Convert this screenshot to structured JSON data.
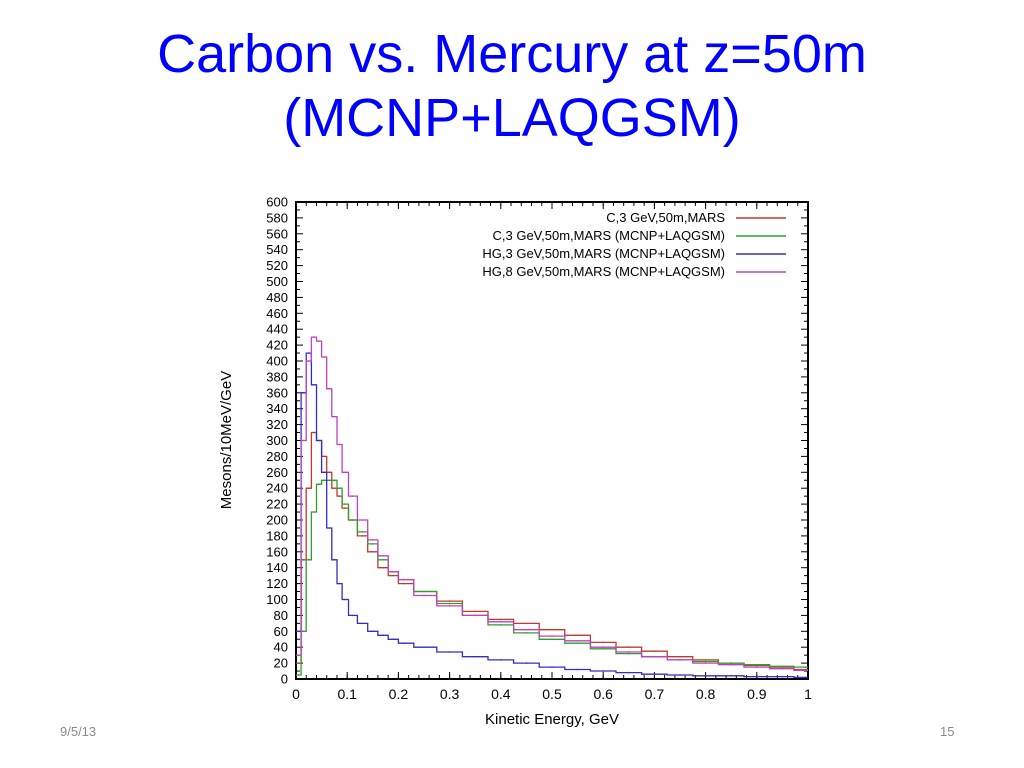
{
  "slide": {
    "title_line1": "Carbon vs. Mercury at z=50m",
    "title_line2": "(MCNP+LAQGSM)",
    "date": "9/5/13",
    "page_number": "15"
  },
  "chart_data": {
    "type": "line",
    "title": "",
    "xlabel": "Kinetic Energy, GeV",
    "ylabel": "Mesons/10MeV/GeV",
    "xlim": [
      0,
      1
    ],
    "ylim": [
      0,
      600
    ],
    "xticks": [
      "0",
      "0.1",
      "0.2",
      "0.3",
      "0.4",
      "0.5",
      "0.6",
      "0.7",
      "0.8",
      "0.9",
      "1"
    ],
    "yticks": [
      "0",
      "20",
      "40",
      "60",
      "80",
      "100",
      "120",
      "140",
      "160",
      "180",
      "200",
      "220",
      "240",
      "260",
      "280",
      "300",
      "320",
      "340",
      "360",
      "380",
      "400",
      "420",
      "440",
      "460",
      "480",
      "500",
      "520",
      "540",
      "560",
      "580",
      "600"
    ],
    "grid": false,
    "legend_position": "top-right",
    "x": [
      0.005,
      0.015,
      0.025,
      0.035,
      0.045,
      0.055,
      0.065,
      0.075,
      0.085,
      0.095,
      0.11,
      0.13,
      0.15,
      0.17,
      0.19,
      0.21,
      0.25,
      0.3,
      0.35,
      0.4,
      0.45,
      0.5,
      0.55,
      0.6,
      0.65,
      0.7,
      0.75,
      0.8,
      0.85,
      0.9,
      0.95,
      0.995
    ],
    "series": [
      {
        "name": "C,3 GeV,50m,MARS",
        "color": "#c0392b",
        "values": [
          20,
          150,
          240,
          310,
          300,
          280,
          260,
          240,
          230,
          215,
          200,
          180,
          160,
          140,
          130,
          120,
          110,
          98,
          85,
          75,
          70,
          62,
          55,
          46,
          40,
          35,
          28,
          24,
          20,
          17,
          14,
          12
        ]
      },
      {
        "name": "C,3 GeV,50m,MARS (MCNP+LAQGSM)",
        "color": "#2ca02c",
        "values": [
          5,
          60,
          150,
          210,
          245,
          250,
          250,
          250,
          240,
          220,
          200,
          185,
          170,
          150,
          135,
          125,
          110,
          95,
          80,
          68,
          58,
          50,
          45,
          38,
          32,
          28,
          24,
          22,
          20,
          18,
          16,
          15
        ]
      },
      {
        "name": "HG,3 GeV,50m,MARS (MCNP+LAQGSM)",
        "color": "#3030c0",
        "values": [
          60,
          360,
          410,
          370,
          300,
          260,
          190,
          150,
          120,
          100,
          80,
          70,
          60,
          55,
          50,
          45,
          40,
          34,
          28,
          24,
          20,
          15,
          12,
          10,
          8,
          6,
          5,
          4,
          4,
          3,
          3,
          2
        ]
      },
      {
        "name": "HG,8 GeV,50m,MARS (MCNP+LAQGSM)",
        "color": "#c040c0",
        "values": [
          30,
          300,
          400,
          430,
          425,
          405,
          365,
          330,
          295,
          260,
          230,
          200,
          175,
          155,
          135,
          125,
          105,
          92,
          80,
          72,
          62,
          54,
          48,
          40,
          34,
          28,
          24,
          20,
          18,
          15,
          13,
          11
        ]
      }
    ]
  }
}
